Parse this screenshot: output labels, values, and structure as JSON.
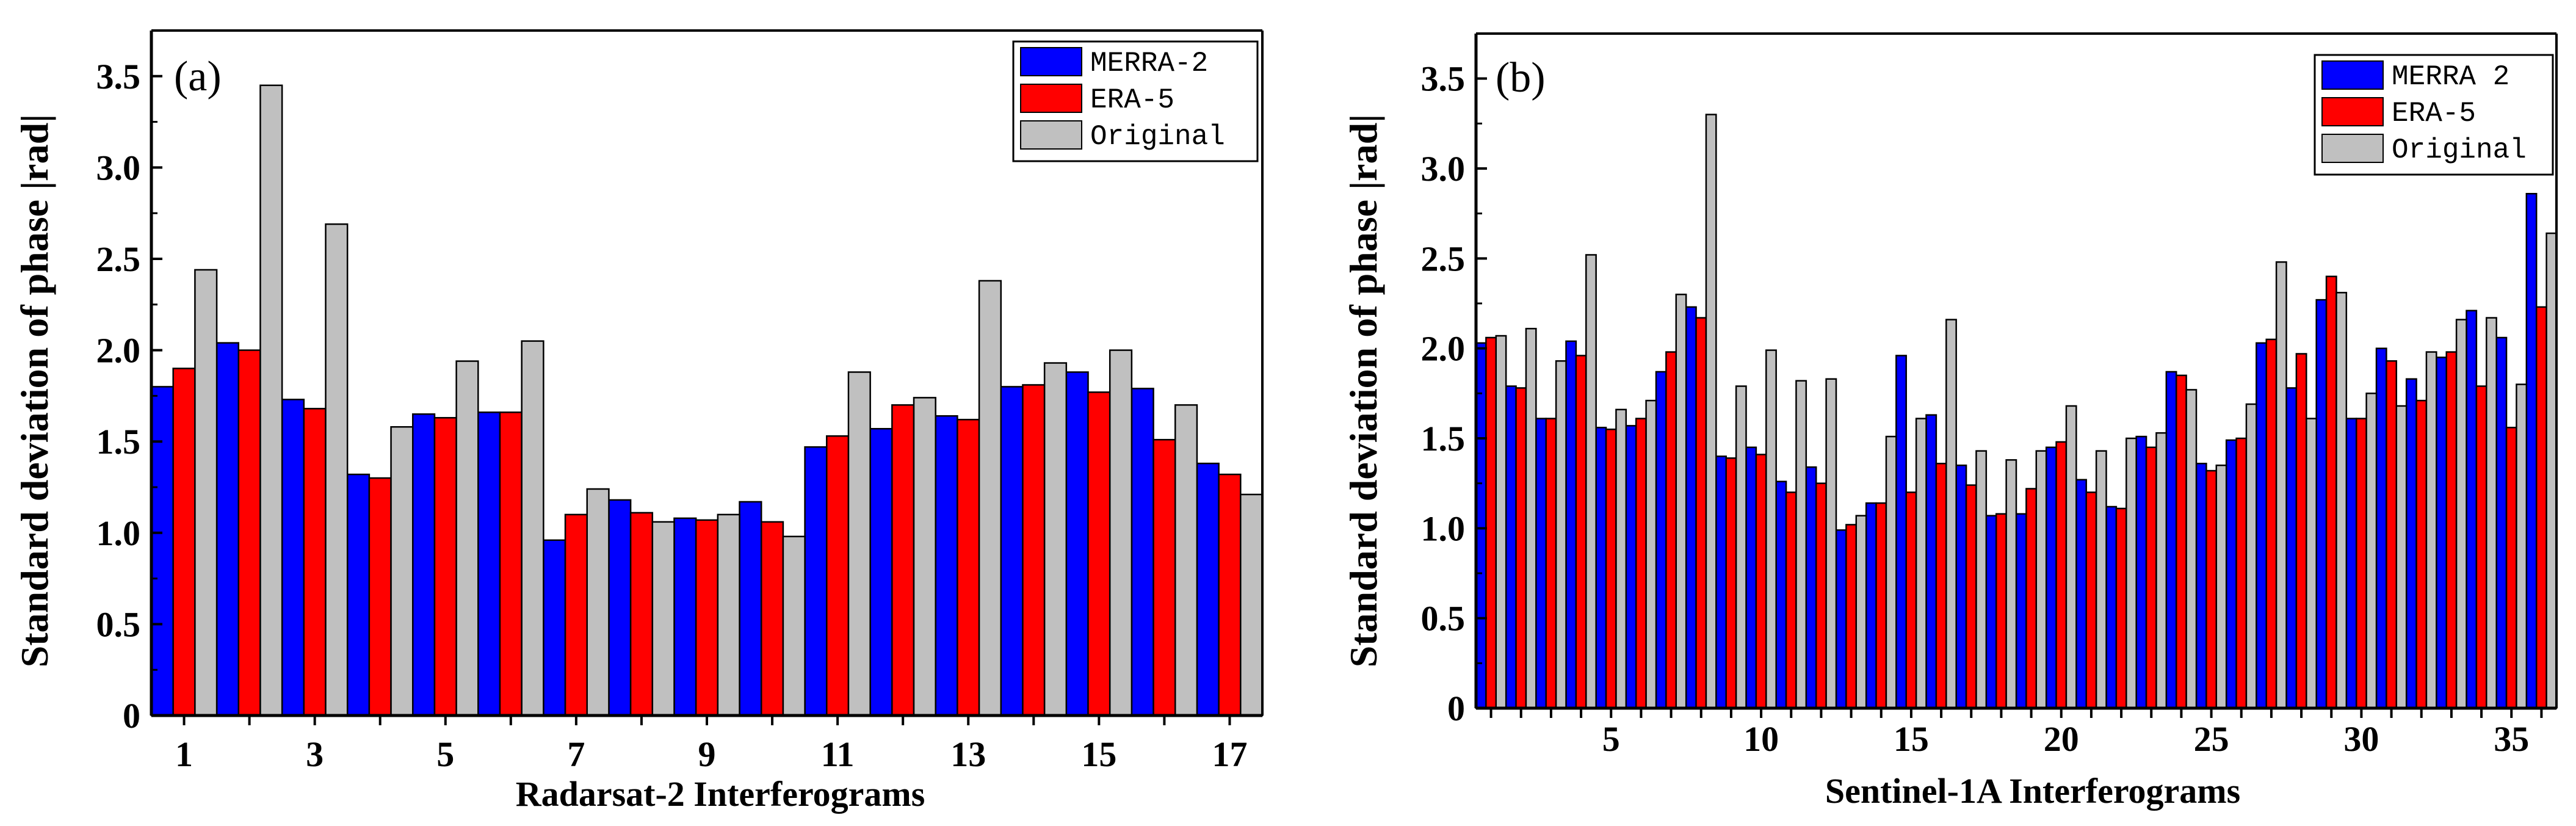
{
  "colors": {
    "MERRA-2": "#0000ff",
    "ERA-5": "#ff0000",
    "Original": "#c0c0c0"
  },
  "chart_data": [
    {
      "type": "bar",
      "panel_label": "(a)",
      "xlabel": "Radarsat-2  Interferograms",
      "ylabel": "Standard deviation of phase |rad|",
      "ylim": [
        0,
        3.75
      ],
      "y_ticks": [
        0,
        0.5,
        1.0,
        1.5,
        2.0,
        2.5,
        3.0,
        3.5
      ],
      "y_tick_labels": [
        "0",
        "0.5",
        "1.0",
        "1.5",
        "2.0",
        "2.5",
        "3.0",
        "3.5"
      ],
      "x_tick_labels": [
        "1",
        "3",
        "5",
        "7",
        "9",
        "11",
        "13",
        "15",
        "17"
      ],
      "x_tick_values": [
        1,
        3,
        5,
        7,
        9,
        11,
        13,
        15,
        17
      ],
      "categories": [
        1,
        2,
        3,
        4,
        5,
        6,
        7,
        8,
        9,
        10,
        11,
        12,
        13,
        14,
        15,
        16,
        17
      ],
      "legend_position": "top-right",
      "series": [
        {
          "name": "MERRA-2",
          "values": [
            1.8,
            2.04,
            1.73,
            1.32,
            1.65,
            1.66,
            0.96,
            1.18,
            1.08,
            1.17,
            1.47,
            1.57,
            1.64,
            1.8,
            1.88,
            1.79,
            1.38
          ]
        },
        {
          "name": "ERA-5",
          "values": [
            1.9,
            2.0,
            1.68,
            1.3,
            1.63,
            1.66,
            1.1,
            1.11,
            1.07,
            1.06,
            1.53,
            1.7,
            1.62,
            1.81,
            1.77,
            1.51,
            1.32
          ]
        },
        {
          "name": "Original",
          "values": [
            2.44,
            3.45,
            2.69,
            1.58,
            1.94,
            2.05,
            1.24,
            1.06,
            1.1,
            0.98,
            1.88,
            1.74,
            2.38,
            1.93,
            2.0,
            1.7,
            1.21
          ]
        }
      ]
    },
    {
      "type": "bar",
      "panel_label": "(b)",
      "xlabel": "Sentinel-1A Interferograms",
      "ylabel": "Standard deviation of phase |rad|",
      "ylim": [
        0,
        3.75
      ],
      "y_ticks": [
        0,
        0.5,
        1.0,
        1.5,
        2.0,
        2.5,
        3.0,
        3.5
      ],
      "y_tick_labels": [
        "0",
        "0.5",
        "1.0",
        "1.5",
        "2.0",
        "2.5",
        "3.0",
        "3.5"
      ],
      "x_tick_labels": [
        "5",
        "10",
        "15",
        "20",
        "25",
        "30",
        "35"
      ],
      "x_tick_values": [
        5,
        10,
        15,
        20,
        25,
        30,
        35
      ],
      "categories": [
        1,
        2,
        3,
        4,
        5,
        6,
        7,
        8,
        9,
        10,
        11,
        12,
        13,
        14,
        15,
        16,
        17,
        18,
        19,
        20,
        21,
        22,
        23,
        24,
        25,
        26,
        27,
        28,
        29,
        30,
        31,
        32,
        33,
        34,
        35,
        36
      ],
      "legend_position": "top-right",
      "series": [
        {
          "name": "MERRA 2",
          "values": [
            2.03,
            1.79,
            1.61,
            2.04,
            1.56,
            1.57,
            1.87,
            2.23,
            1.4,
            1.45,
            1.26,
            1.34,
            0.99,
            1.14,
            1.96,
            1.63,
            1.35,
            1.07,
            1.08,
            1.45,
            1.27,
            1.12,
            1.51,
            1.87,
            1.36,
            1.49,
            2.03,
            1.78,
            2.27,
            1.61,
            2.0,
            1.83,
            1.95,
            2.21,
            2.06,
            2.86
          ]
        },
        {
          "name": "ERA-5",
          "values": [
            2.06,
            1.78,
            1.61,
            1.96,
            1.55,
            1.61,
            1.98,
            2.17,
            1.39,
            1.41,
            1.2,
            1.25,
            1.02,
            1.14,
            1.2,
            1.36,
            1.24,
            1.08,
            1.22,
            1.48,
            1.2,
            1.11,
            1.45,
            1.85,
            1.32,
            1.5,
            2.05,
            1.97,
            2.4,
            1.61,
            1.93,
            1.71,
            1.98,
            1.79,
            1.56,
            2.23
          ]
        },
        {
          "name": "Original",
          "values": [
            2.07,
            2.11,
            1.93,
            2.52,
            1.66,
            1.71,
            2.3,
            3.3,
            1.79,
            1.99,
            1.82,
            1.83,
            1.07,
            1.51,
            1.61,
            2.16,
            1.43,
            1.38,
            1.43,
            1.68,
            1.43,
            1.5,
            1.53,
            1.77,
            1.35,
            1.69,
            2.48,
            1.61,
            2.31,
            1.75,
            1.68,
            1.98,
            2.16,
            2.17,
            1.8,
            2.64
          ]
        }
      ]
    }
  ]
}
